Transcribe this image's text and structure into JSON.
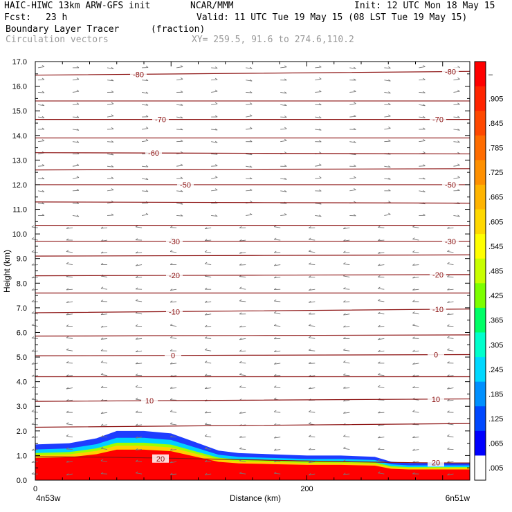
{
  "header": {
    "model": "HAIC-HIWC 13km ARW-GFS init",
    "org": "NCAR/MMM",
    "init": "Init: 12 UTC Mon 18 May 15",
    "fcst_label": "Fcst:",
    "fcst_value": "23 h",
    "valid": "Valid: 11 UTC Tue 19 May 15 (08 LST Tue 19 May 15)",
    "field": "Boundary Layer Tracer",
    "field_units": "(fraction)",
    "overlay": "Circulation vectors",
    "xy": "XY= 259.5, 91.6 to 274.6,110.2"
  },
  "chart_data": {
    "type": "heatmap",
    "title": "Boundary Layer Tracer",
    "units": "(fraction)",
    "xlabel": "Distance (km)",
    "ylabel": "Height (km)",
    "xlim": [
      0,
      320
    ],
    "ylim": [
      0,
      17
    ],
    "x_ticks": [
      {
        "value": 0,
        "label": "0"
      },
      {
        "value": 200,
        "label": "200"
      }
    ],
    "x_end_labels": [
      "4n53w",
      "6n51w"
    ],
    "y_ticks": [
      {
        "value": 0,
        "label": "0.0"
      },
      {
        "value": 1,
        "label": "1.0"
      },
      {
        "value": 2,
        "label": "2.0"
      },
      {
        "value": 3,
        "label": "3.0"
      },
      {
        "value": 4,
        "label": "4.0"
      },
      {
        "value": 5,
        "label": "5.0"
      },
      {
        "value": 6,
        "label": "6.0"
      },
      {
        "value": 7,
        "label": "7.0"
      },
      {
        "value": 8,
        "label": "8.0"
      },
      {
        "value": 9,
        "label": "9.0"
      },
      {
        "value": 10,
        "label": "10.0"
      },
      {
        "value": 11,
        "label": "11.0"
      },
      {
        "value": 12,
        "label": "12.0"
      },
      {
        "value": 13,
        "label": "13.0"
      },
      {
        "value": 14,
        "label": "14.0"
      },
      {
        "value": 15,
        "label": "15.0"
      },
      {
        "value": 16,
        "label": "16.0"
      },
      {
        "value": 17,
        "label": "17.0"
      }
    ],
    "tracer_top_km": {
      "x": [
        0,
        25,
        45,
        60,
        80,
        100,
        115,
        125,
        135,
        150,
        175,
        200,
        225,
        250,
        262,
        275,
        290,
        305,
        320
      ],
      "y": [
        1.45,
        1.5,
        1.7,
        2.0,
        2.0,
        1.9,
        1.6,
        1.4,
        1.2,
        1.1,
        1.05,
        1.0,
        1.0,
        0.95,
        0.75,
        0.7,
        0.7,
        0.7,
        0.7
      ]
    },
    "colorbar": {
      "labels": [
        "–",
        ".905",
        ".845",
        ".785",
        ".725",
        ".665",
        ".605",
        ".545",
        ".485",
        ".425",
        ".365",
        ".305",
        ".245",
        ".185",
        ".125",
        ".065",
        ".005"
      ],
      "colors": [
        "#ff0000",
        "#ff2400",
        "#ff4800",
        "#ff6c00",
        "#ff9000",
        "#ffb400",
        "#ffd800",
        "#ffff00",
        "#c8ff00",
        "#7cff00",
        "#00ff66",
        "#00ffcc",
        "#00d8ff",
        "#0090ff",
        "#0048ff",
        "#0000ff",
        "#ffffff"
      ]
    },
    "temperature_contours": [
      {
        "label": "-80",
        "y": [
          16.45,
          16.6
        ]
      },
      {
        "label": "",
        "y": [
          15.4,
          15.4
        ]
      },
      {
        "label": "-70",
        "y": [
          14.65,
          14.65
        ]
      },
      {
        "label": "",
        "y": [
          13.9,
          13.9
        ]
      },
      {
        "label": "-60",
        "y": [
          13.3,
          13.25
        ]
      },
      {
        "label": "",
        "y": [
          12.6,
          12.65
        ]
      },
      {
        "label": "-50",
        "y": [
          12.0,
          12.0
        ]
      },
      {
        "label": "",
        "y": [
          11.3,
          11.25
        ]
      },
      {
        "label": "",
        "y": [
          10.35,
          10.35
        ]
      },
      {
        "label": "-30",
        "y": [
          9.7,
          9.7
        ]
      },
      {
        "label": "",
        "y": [
          9.1,
          9.15
        ]
      },
      {
        "label": "-20",
        "y": [
          8.3,
          8.35
        ]
      },
      {
        "label": "",
        "y": [
          7.6,
          7.6
        ]
      },
      {
        "label": "-10",
        "y": [
          6.8,
          6.95
        ]
      },
      {
        "label": "",
        "y": [
          5.85,
          5.9
        ]
      },
      {
        "label": "0",
        "y": [
          5.05,
          5.1
        ]
      },
      {
        "label": "",
        "y": [
          4.2,
          4.2
        ]
      },
      {
        "label": "10",
        "y": [
          3.2,
          3.3
        ]
      },
      {
        "label": "",
        "y": [
          2.15,
          2.3
        ]
      },
      {
        "label": "20",
        "y": [
          0.95,
          0.7
        ]
      }
    ]
  }
}
